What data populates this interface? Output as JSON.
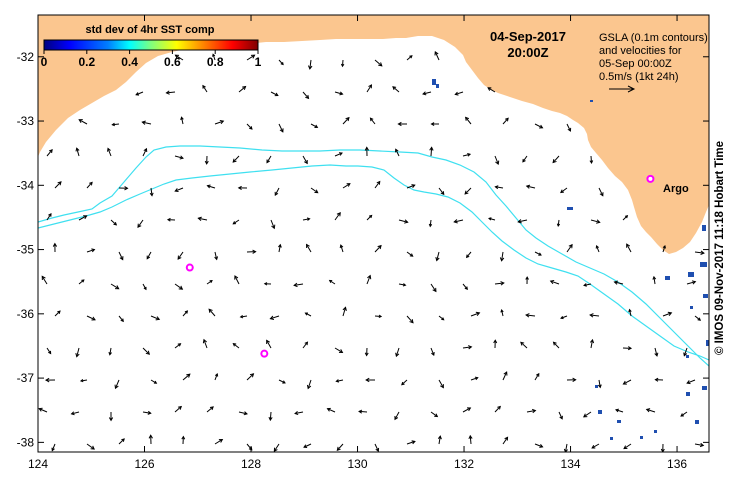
{
  "colorbar": {
    "title": "std dev of 4hr SST comp",
    "ticks": [
      "0",
      "0.2",
      "0.4",
      "0.6",
      "0.8",
      "1"
    ],
    "range": [
      0,
      1
    ],
    "colors": [
      "#00007f",
      "#0000ff",
      "#007fff",
      "#00ffff",
      "#7fff7f",
      "#ffff00",
      "#ff7f00",
      "#ff0000",
      "#7f0000"
    ]
  },
  "header": {
    "date": "04-Sep-2017",
    "time": "20:00Z"
  },
  "legend": {
    "line1": "GSLA (0.1m contours)",
    "line2": "and velocities for",
    "line3": "05-Sep 00:00Z",
    "line4": "0.5m/s (1kt 24h)"
  },
  "axes": {
    "lon_range": [
      124,
      136.6
    ],
    "lat_range": [
      -38.15,
      -31.35
    ],
    "x_ticks": [
      124,
      126,
      128,
      130,
      132,
      134,
      136
    ],
    "x_labels": [
      "124",
      "126",
      "128",
      "130",
      "132",
      "134",
      "136"
    ],
    "y_ticks": [
      -32,
      -33,
      -34,
      -35,
      -36,
      -37,
      -38
    ],
    "y_labels": [
      "-32",
      "-33",
      "-34",
      "-35",
      "-36",
      "-37",
      "-38"
    ]
  },
  "labels": {
    "argo": "Argo"
  },
  "argo_floats": [
    {
      "lon": 135.5,
      "lat": -33.9
    },
    {
      "lon": 126.85,
      "lat": -35.28
    },
    {
      "lon": 128.25,
      "lat": -36.62
    }
  ],
  "credit": "© IMOS 09-Nov-2017 11:18 Hobart Time",
  "style": {
    "land": "#fbc68f",
    "contour": "#3fe0f0",
    "argo": "#ff00ff",
    "sst_patch": "#1f4fb0"
  }
}
